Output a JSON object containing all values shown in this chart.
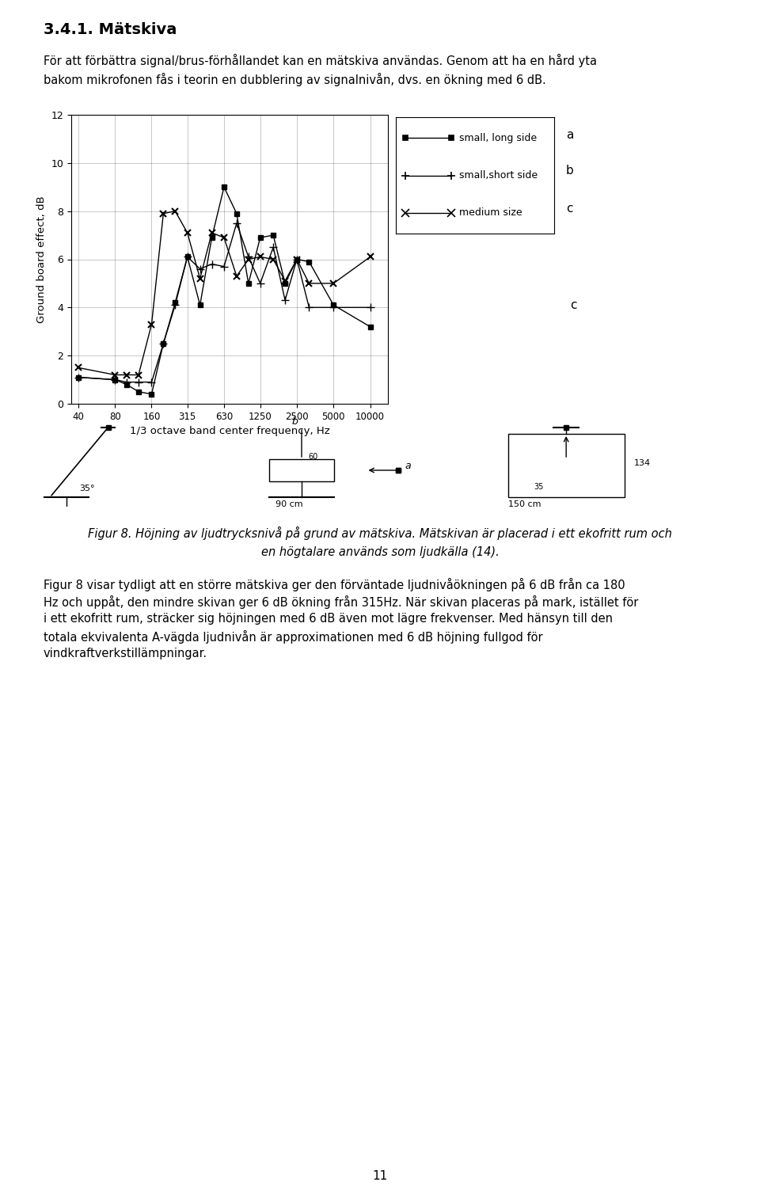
{
  "title": "3.4.1. Mätskiva",
  "intro_text_line1": "För att förbättra signal/brus-förhållandet kan en mätskiva användas. Genom att ha en hård yta",
  "intro_text_line2": "bakom mikrofonen fås i teorin en dubblering av signalnivån, dvs. en ökning med 6 dB.",
  "xlabel": "1/3 octave band center frequency, Hz",
  "ylabel": "Ground board effect, dB",
  "small_long_freqs": [
    40,
    80,
    100,
    125,
    160,
    200,
    250,
    315,
    400,
    500,
    630,
    800,
    1000,
    1250,
    1600,
    2000,
    2500,
    3150,
    5000,
    10000
  ],
  "small_long_vals": [
    1.1,
    1.0,
    0.8,
    0.5,
    0.4,
    2.5,
    4.2,
    6.1,
    4.1,
    6.9,
    9.0,
    7.9,
    5.0,
    6.9,
    7.0,
    5.0,
    6.0,
    5.9,
    4.1,
    3.2
  ],
  "small_short_freqs": [
    40,
    80,
    100,
    125,
    160,
    200,
    250,
    315,
    400,
    500,
    630,
    800,
    1000,
    1250,
    1600,
    2000,
    2500,
    3150,
    5000,
    10000
  ],
  "small_short_vals": [
    1.1,
    1.0,
    0.9,
    0.9,
    0.9,
    2.5,
    4.1,
    6.1,
    5.6,
    5.8,
    5.7,
    7.5,
    6.1,
    5.0,
    6.5,
    4.3,
    6.0,
    4.0,
    4.0,
    4.0
  ],
  "medium_freqs": [
    40,
    80,
    100,
    125,
    160,
    200,
    250,
    315,
    400,
    500,
    630,
    800,
    1000,
    1250,
    1600,
    2000,
    2500,
    3150,
    5000,
    10000
  ],
  "medium_vals": [
    1.5,
    1.2,
    1.2,
    1.2,
    3.3,
    7.9,
    8.0,
    7.1,
    5.2,
    7.1,
    6.9,
    5.3,
    6.0,
    6.1,
    6.0,
    5.1,
    6.0,
    5.0,
    5.0,
    6.1
  ],
  "ylim": [
    0,
    12
  ],
  "yticks": [
    0,
    2,
    4,
    6,
    8,
    10,
    12
  ],
  "xtick_labels": [
    "40",
    "80",
    "160",
    "315",
    "630",
    "1250",
    "2500",
    "5000",
    "10000"
  ],
  "xtick_positions": [
    40,
    80,
    160,
    315,
    630,
    1250,
    2500,
    5000,
    10000
  ],
  "legend_labels": [
    "small, long side",
    "small,short side",
    "medium size"
  ],
  "label_a": "a",
  "label_b": "b",
  "label_c": "c",
  "caption_line1": "Figur 8. Höjning av ljudtrycksnivå på grund av mätskiva. Mätskivan är placerad i ett ekofritt rum och",
  "caption_line2": "en högtalare används som ljudkälla (14).",
  "body_bottom": "Figur 8 visar tydligt att en större mätskiva ger den förväntade ljudnivåökningen på 6 dB från ca 180 Hz och uppåt, den mindre skivan ger 6 dB ökning från 315Hz. När skivan placeras på mark, istället för i ett ekofritt rum, sträcker sig höjningen med 6 dB även mot lägre frekvenser. Med hänsyn till den totala ekvivalenta A-vägda ljudnivån är approximationen med 6 dB höjning fullgod för vindkraftverkstillämpningar.",
  "page_number": "11",
  "bg_color": "#ffffff"
}
